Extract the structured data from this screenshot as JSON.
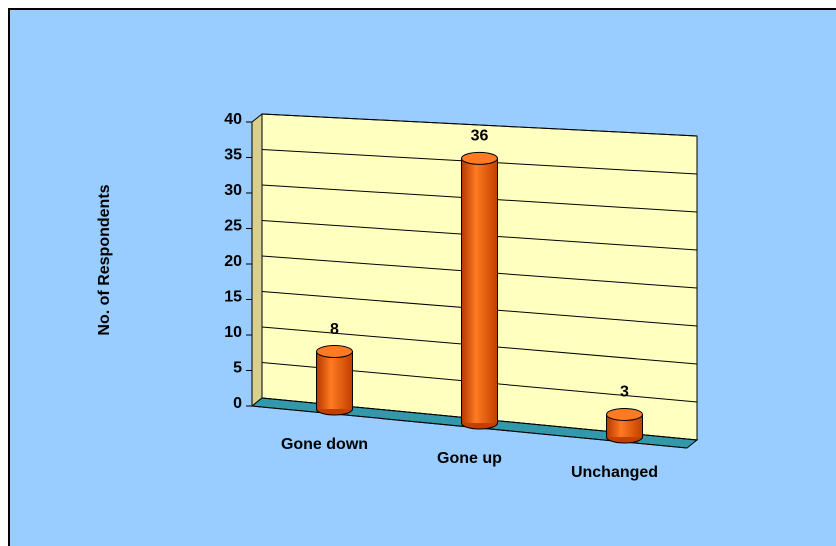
{
  "chart_data": {
    "type": "bar3d",
    "y_label": "No. of Respondents",
    "categories": [
      "Gone down",
      "Gone up",
      "Unchanged"
    ],
    "values": [
      8,
      36,
      3
    ],
    "color": "#ff6600",
    "ylim": [
      0,
      40
    ],
    "yticks": [
      0,
      5,
      10,
      15,
      20,
      25,
      30,
      35,
      40
    ],
    "grid": true
  }
}
